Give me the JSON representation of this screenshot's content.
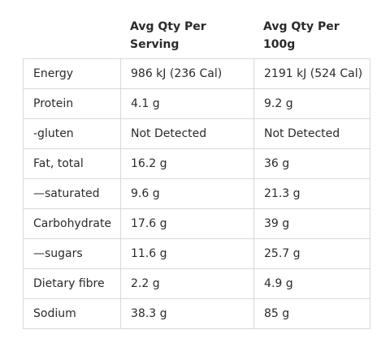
{
  "table": {
    "headers": [
      "",
      "Avg Qty Per\nServing",
      "Avg Qty Per\n100g"
    ],
    "rows": [
      {
        "nutrient": "Energy",
        "per_serving": "986 kJ (236 Cal)",
        "per_100g": "2191 kJ (524 Cal)"
      },
      {
        "nutrient": "Protein",
        "per_serving": "4.1 g",
        "per_100g": "9.2 g"
      },
      {
        "nutrient": "-gluten",
        "per_serving": "Not Detected",
        "per_100g": "Not Detected"
      },
      {
        "nutrient": "Fat, total",
        "per_serving": "16.2 g",
        "per_100g": "36 g"
      },
      {
        "nutrient": "—saturated",
        "per_serving": "9.6 g",
        "per_100g": "21.3 g"
      },
      {
        "nutrient": "Carbohydrate",
        "per_serving": "17.6 g",
        "per_100g": "39 g"
      },
      {
        "nutrient": "—sugars",
        "per_serving": "11.6 g",
        "per_100g": "25.7 g"
      },
      {
        "nutrient": "Dietary fibre",
        "per_serving": "2.2 g",
        "per_100g": "4.9 g"
      },
      {
        "nutrient": "Sodium",
        "per_serving": "38.3 g",
        "per_100g": "85 g"
      }
    ]
  },
  "colors": {
    "border": "#d9d9d9",
    "text": "#2b2b2b",
    "background": "#ffffff"
  }
}
